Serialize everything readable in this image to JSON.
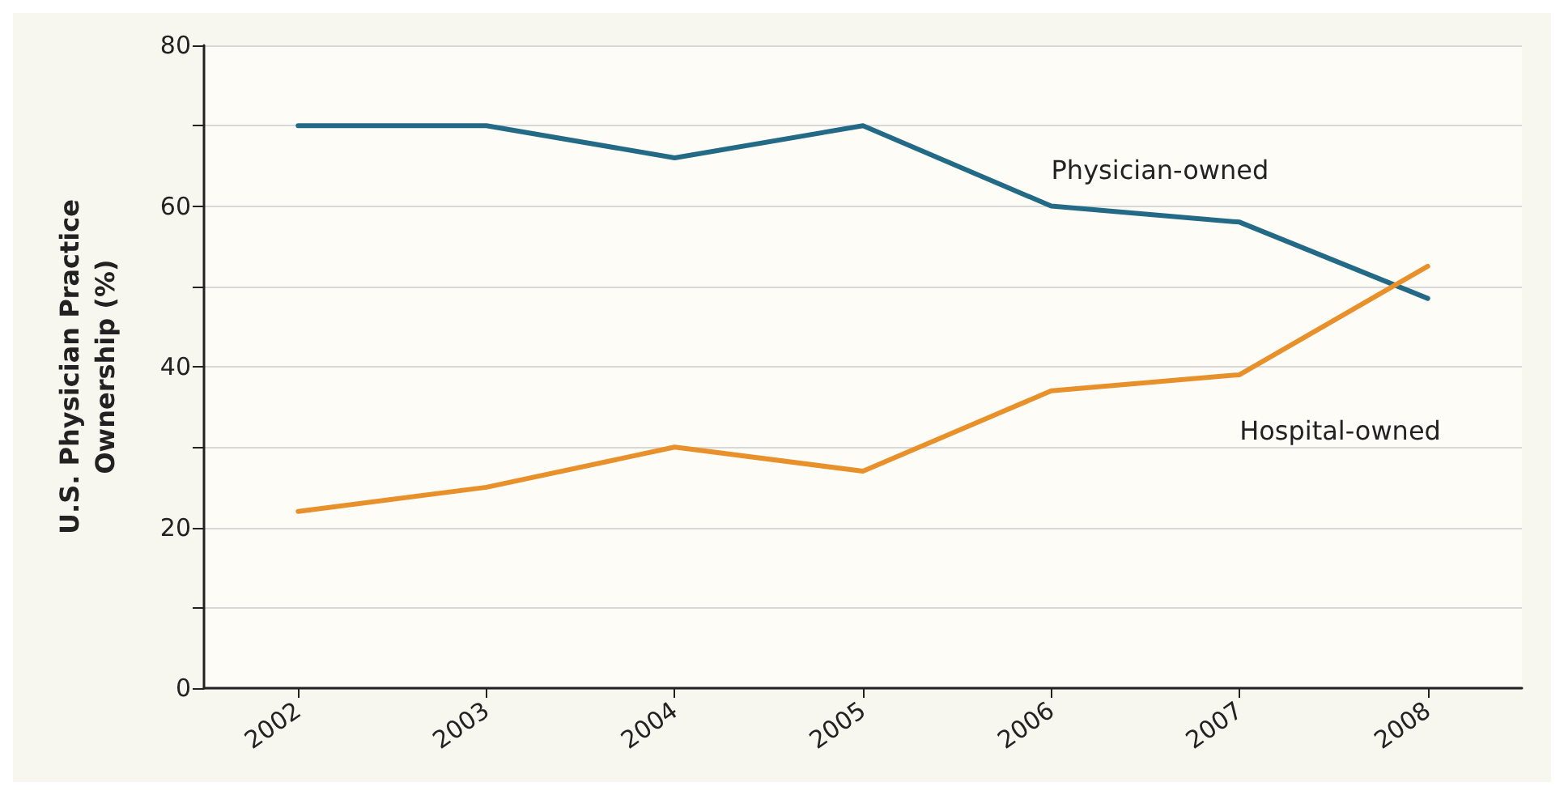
{
  "chart_data": {
    "type": "line",
    "ylabel": "U.S. Physician Practice\nOwnership (%)",
    "categories": [
      "2002",
      "2003",
      "2004",
      "2005",
      "2006",
      "2007",
      "2008"
    ],
    "series": [
      {
        "name": "Physician-owned",
        "color": "#236a86",
        "values": [
          70,
          70,
          66,
          70,
          60,
          58,
          48.5
        ]
      },
      {
        "name": "Hospital-owned",
        "color": "#e8902a",
        "values": [
          22,
          25,
          30,
          27,
          37,
          39,
          52.5
        ]
      }
    ],
    "ylim": [
      0,
      80
    ],
    "yticks": [
      0,
      {
        "value": 10,
        "label": null
      },
      20,
      {
        "value": 30,
        "label": null
      },
      40,
      {
        "value": 50,
        "label": null
      },
      60,
      {
        "value": 70,
        "label": null
      },
      80
    ],
    "grid": "y",
    "legend": false
  }
}
